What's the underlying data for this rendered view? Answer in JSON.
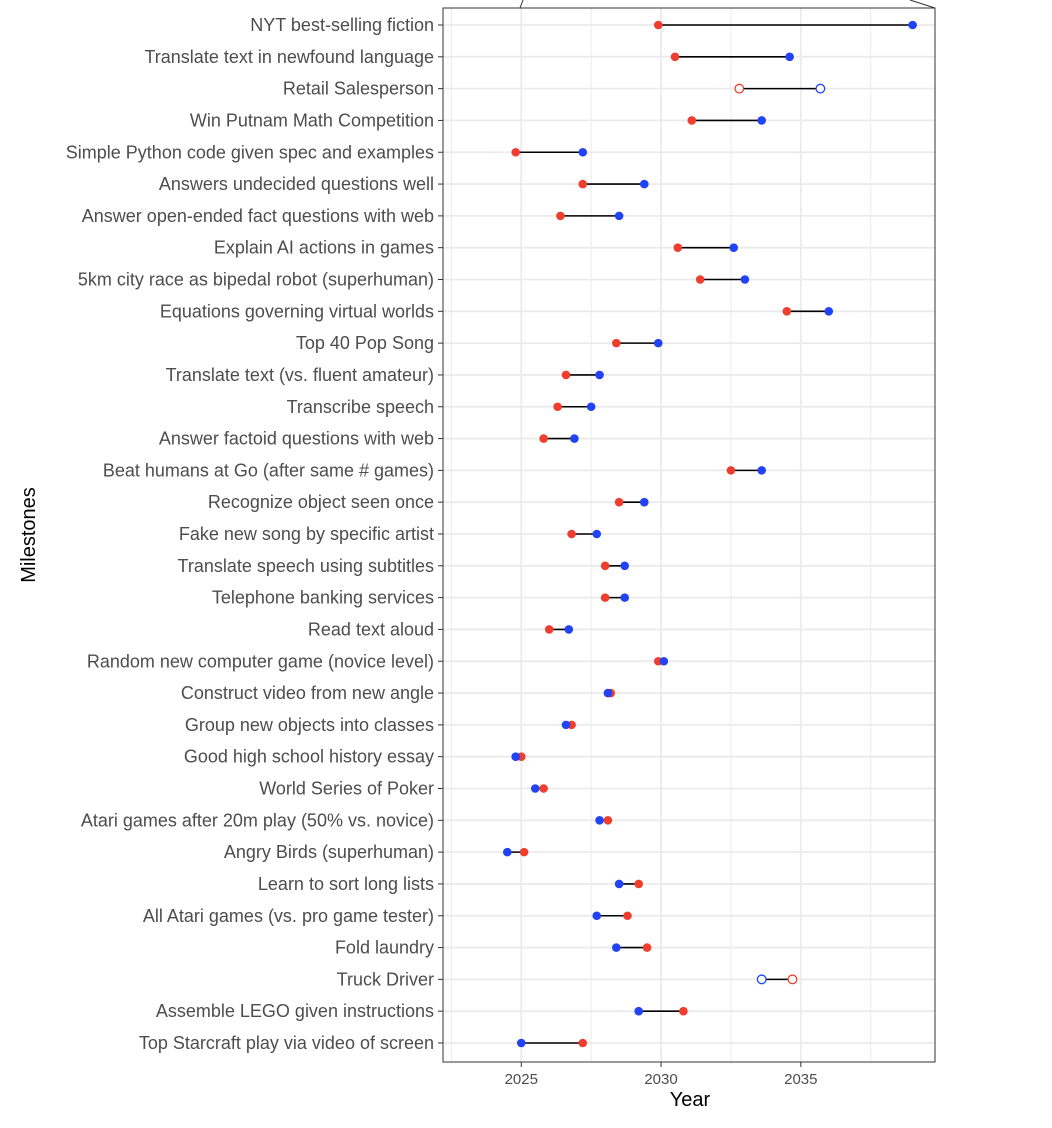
{
  "chart_data": {
    "type": "scatter",
    "subtype": "dumbbell",
    "xlabel": "Year",
    "ylabel": "Milestones",
    "xlim": [
      2022.2,
      2039.8
    ],
    "x_ticks": [
      2025,
      2030,
      2035
    ],
    "grid": true,
    "legend": "none",
    "colors": {
      "red": "#f03e2e",
      "blue": "#2142f5",
      "segment": "#000000",
      "grid": "#ebebeb"
    },
    "rows": [
      {
        "label": "NYT best-selling fiction",
        "red": 2029.9,
        "blue": 2039.0,
        "open": false
      },
      {
        "label": "Translate text in newfound language",
        "red": 2030.5,
        "blue": 2034.6,
        "open": false
      },
      {
        "label": "Retail Salesperson",
        "red": 2032.8,
        "blue": 2035.7,
        "open": true
      },
      {
        "label": "Win Putnam Math Competition",
        "red": 2031.1,
        "blue": 2033.6,
        "open": false
      },
      {
        "label": "Simple Python code given spec and examples",
        "red": 2024.8,
        "blue": 2027.2,
        "open": false
      },
      {
        "label": "Answers undecided questions well",
        "red": 2027.2,
        "blue": 2029.4,
        "open": false
      },
      {
        "label": "Answer open-ended fact questions with web",
        "red": 2026.4,
        "blue": 2028.5,
        "open": false
      },
      {
        "label": "Explain AI actions in games",
        "red": 2030.6,
        "blue": 2032.6,
        "open": false
      },
      {
        "label": "5km city race as bipedal robot (superhuman)",
        "red": 2031.4,
        "blue": 2033.0,
        "open": false
      },
      {
        "label": "Equations governing virtual worlds",
        "red": 2034.5,
        "blue": 2036.0,
        "open": false
      },
      {
        "label": "Top 40 Pop Song",
        "red": 2028.4,
        "blue": 2029.9,
        "open": false
      },
      {
        "label": "Translate text (vs. fluent amateur)",
        "red": 2026.6,
        "blue": 2027.8,
        "open": false
      },
      {
        "label": "Transcribe speech",
        "red": 2026.3,
        "blue": 2027.5,
        "open": false
      },
      {
        "label": "Answer factoid questions with web",
        "red": 2025.8,
        "blue": 2026.9,
        "open": false
      },
      {
        "label": "Beat humans at Go (after same # games)",
        "red": 2032.5,
        "blue": 2033.6,
        "open": false
      },
      {
        "label": "Recognize object seen once",
        "red": 2028.5,
        "blue": 2029.4,
        "open": false
      },
      {
        "label": "Fake new song by specific artist",
        "red": 2026.8,
        "blue": 2027.7,
        "open": false
      },
      {
        "label": "Translate speech using subtitles",
        "red": 2028.0,
        "blue": 2028.7,
        "open": false
      },
      {
        "label": "Telephone banking services",
        "red": 2028.0,
        "blue": 2028.7,
        "open": false
      },
      {
        "label": "Read text aloud",
        "red": 2026.0,
        "blue": 2026.7,
        "open": false
      },
      {
        "label": "Random new computer game (novice level)",
        "red": 2029.9,
        "blue": 2030.1,
        "open": false
      },
      {
        "label": "Construct video from new angle",
        "red": 2028.2,
        "blue": 2028.1,
        "open": false
      },
      {
        "label": "Group new objects into classes",
        "red": 2026.8,
        "blue": 2026.6,
        "open": false
      },
      {
        "label": "Good high school history essay",
        "red": 2025.0,
        "blue": 2024.8,
        "open": false
      },
      {
        "label": "World Series of Poker",
        "red": 2025.8,
        "blue": 2025.5,
        "open": false
      },
      {
        "label": "Atari games after 20m play (50% vs. novice)",
        "red": 2028.1,
        "blue": 2027.8,
        "open": false
      },
      {
        "label": "Angry Birds (superhuman)",
        "red": 2025.1,
        "blue": 2024.5,
        "open": false
      },
      {
        "label": "Learn to sort long lists",
        "red": 2029.2,
        "blue": 2028.5,
        "open": false
      },
      {
        "label": "All Atari games (vs. pro game tester)",
        "red": 2028.8,
        "blue": 2027.7,
        "open": false
      },
      {
        "label": "Fold laundry",
        "red": 2029.5,
        "blue": 2028.4,
        "open": false
      },
      {
        "label": "Truck Driver",
        "red": 2034.7,
        "blue": 2033.6,
        "open": true
      },
      {
        "label": "Assemble LEGO given instructions",
        "red": 2030.8,
        "blue": 2029.2,
        "open": false
      },
      {
        "label": "Top Starcraft play via video of screen",
        "red": 2027.2,
        "blue": 2025.0,
        "open": false
      }
    ]
  }
}
